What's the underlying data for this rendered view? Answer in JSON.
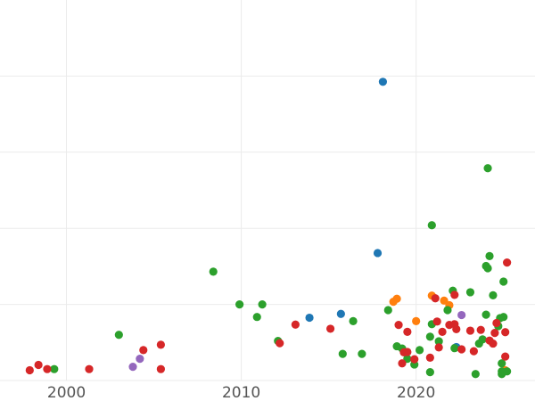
{
  "chart_data": {
    "type": "scatter",
    "title": "",
    "xlabel": "",
    "ylabel": "",
    "xlim": [
      1996.2,
      2026.8
    ],
    "ylim": [
      0,
      1000
    ],
    "x_ticks": [
      2000,
      2010,
      2020
    ],
    "x_tick_labels": [
      "2000",
      "2010",
      "2020"
    ],
    "y_gridlines": [
      0,
      200,
      400,
      600,
      800
    ],
    "grid": true,
    "legend": "none",
    "colors": {
      "blue": "#1f77b4",
      "orange": "#ff7f0e",
      "green": "#2ca02c",
      "red": "#d62728",
      "purple": "#9467bd"
    },
    "series": [
      {
        "color_key": "blue",
        "points": [
          [
            2018.1,
            785
          ],
          [
            2017.8,
            335
          ],
          [
            2013.9,
            165
          ],
          [
            2015.7,
            175
          ],
          [
            2022.3,
            88
          ]
        ]
      },
      {
        "color_key": "orange",
        "points": [
          [
            2018.7,
            207
          ],
          [
            2018.9,
            215
          ],
          [
            2020.0,
            156
          ],
          [
            2020.9,
            223
          ],
          [
            2021.6,
            210
          ],
          [
            2021.9,
            198
          ],
          [
            2025.1,
            27
          ]
        ]
      },
      {
        "color_key": "green",
        "points": [
          [
            1999.3,
            30
          ],
          [
            2003.0,
            120
          ],
          [
            2008.4,
            286
          ],
          [
            2009.9,
            200
          ],
          [
            2010.9,
            167
          ],
          [
            2011.2,
            200
          ],
          [
            2012.1,
            104
          ],
          [
            2015.8,
            70
          ],
          [
            2016.4,
            156
          ],
          [
            2016.9,
            70
          ],
          [
            2018.4,
            185
          ],
          [
            2018.9,
            90
          ],
          [
            2019.2,
            84
          ],
          [
            2019.5,
            57
          ],
          [
            2019.9,
            42
          ],
          [
            2020.2,
            80
          ],
          [
            2020.8,
            22
          ],
          [
            2020.8,
            115
          ],
          [
            2020.9,
            148
          ],
          [
            2020.9,
            408
          ],
          [
            2021.3,
            103
          ],
          [
            2021.8,
            185
          ],
          [
            2022.1,
            236
          ],
          [
            2022.2,
            85
          ],
          [
            2023.1,
            232
          ],
          [
            2023.4,
            17
          ],
          [
            2023.6,
            97
          ],
          [
            2023.8,
            108
          ],
          [
            2024.0,
            173
          ],
          [
            2024.0,
            301
          ],
          [
            2024.1,
            558
          ],
          [
            2024.1,
            295
          ],
          [
            2024.2,
            327
          ],
          [
            2024.4,
            224
          ],
          [
            2024.7,
            143
          ],
          [
            2024.8,
            164
          ],
          [
            2024.9,
            24
          ],
          [
            2024.9,
            45
          ],
          [
            2024.9,
            17
          ],
          [
            2025.0,
            167
          ],
          [
            2025.0,
            260
          ],
          [
            2025.2,
            24
          ]
        ]
      },
      {
        "color_key": "red",
        "points": [
          [
            1997.9,
            27
          ],
          [
            1998.4,
            41
          ],
          [
            1998.9,
            30
          ],
          [
            2001.3,
            30
          ],
          [
            2004.4,
            80
          ],
          [
            2005.4,
            94
          ],
          [
            2005.4,
            30
          ],
          [
            2012.2,
            98
          ],
          [
            2013.1,
            147
          ],
          [
            2015.1,
            136
          ],
          [
            2019.0,
            146
          ],
          [
            2019.2,
            45
          ],
          [
            2019.3,
            74
          ],
          [
            2019.5,
            75
          ],
          [
            2019.5,
            128
          ],
          [
            2019.9,
            56
          ],
          [
            2020.8,
            60
          ],
          [
            2021.1,
            216
          ],
          [
            2021.2,
            155
          ],
          [
            2021.3,
            87
          ],
          [
            2021.5,
            128
          ],
          [
            2021.9,
            146
          ],
          [
            2022.2,
            148
          ],
          [
            2022.2,
            225
          ],
          [
            2022.3,
            135
          ],
          [
            2022.6,
            82
          ],
          [
            2023.1,
            131
          ],
          [
            2023.3,
            77
          ],
          [
            2023.7,
            133
          ],
          [
            2024.2,
            105
          ],
          [
            2024.4,
            97
          ],
          [
            2024.5,
            125
          ],
          [
            2024.6,
            151
          ],
          [
            2025.1,
            127
          ],
          [
            2025.1,
            63
          ],
          [
            2025.2,
            310
          ]
        ]
      },
      {
        "color_key": "purple",
        "points": [
          [
            2003.8,
            36
          ],
          [
            2004.2,
            57
          ],
          [
            2022.6,
            172
          ]
        ]
      }
    ]
  }
}
